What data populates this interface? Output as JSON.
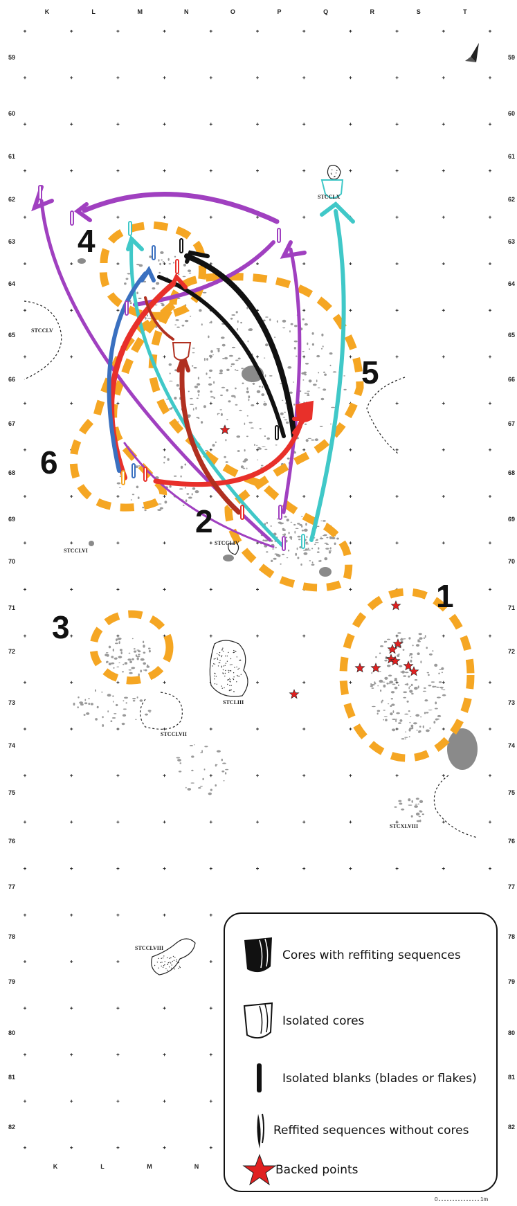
{
  "grid": {
    "columns_top": [
      "K",
      "L",
      "M",
      "N",
      "O",
      "P",
      "Q",
      "R",
      "S",
      "T"
    ],
    "columns_bottom": [
      "K",
      "L",
      "M",
      "N"
    ],
    "rows": [
      "59",
      "60",
      "61",
      "62",
      "63",
      "64",
      "65",
      "66",
      "67",
      "68",
      "69",
      "70",
      "71",
      "72",
      "73",
      "74",
      "75",
      "76",
      "77",
      "78",
      "79",
      "80",
      "81",
      "82"
    ]
  },
  "structures": [
    {
      "name": "structure-label-stcclv",
      "label": "STCCLV"
    },
    {
      "name": "structure-label-stcclx",
      "label": "STCCLX"
    },
    {
      "name": "structure-label-stccliv",
      "label": "STCCLIV"
    },
    {
      "name": "structure-label-stcclvi",
      "label": "STCCLVI"
    },
    {
      "name": "structure-label-stccliii",
      "label": "STCLIII"
    },
    {
      "name": "structure-label-stcclvii",
      "label": "STCCLVII"
    },
    {
      "name": "structure-label-stcxlviii",
      "label": "STCXLVIII"
    },
    {
      "name": "structure-label-stcclviii",
      "label": "STCCLVIII"
    }
  ],
  "clusters": [
    "1",
    "2",
    "3",
    "4",
    "5",
    "6"
  ],
  "legend": {
    "items": [
      {
        "name": "legend-cores-refitting",
        "label": "Cores with reffiting sequences"
      },
      {
        "name": "legend-isolated-cores",
        "label": "Isolated cores"
      },
      {
        "name": "legend-isolated-blanks",
        "label": "Isolated blanks (blades or flakes)"
      },
      {
        "name": "legend-refitted-sequences",
        "label": "Reffited sequences without cores"
      },
      {
        "name": "legend-backed-points",
        "label": "Backed points"
      }
    ]
  },
  "scale_bar": {
    "start": "0",
    "end": "1m"
  },
  "colors": {
    "cluster_outline": "#f5a623",
    "refit_purple": "#a040c0",
    "refit_cyan": "#40c8c8",
    "refit_black": "#111111",
    "refit_red": "#e8302a",
    "refit_darkred": "#b03020",
    "refit_blue": "#3a70c0",
    "backed_point": "#e02020",
    "artifact_grey": "#999999"
  },
  "icons": [
    "north-arrow-icon",
    "star-icon",
    "core-icon",
    "blank-icon"
  ]
}
